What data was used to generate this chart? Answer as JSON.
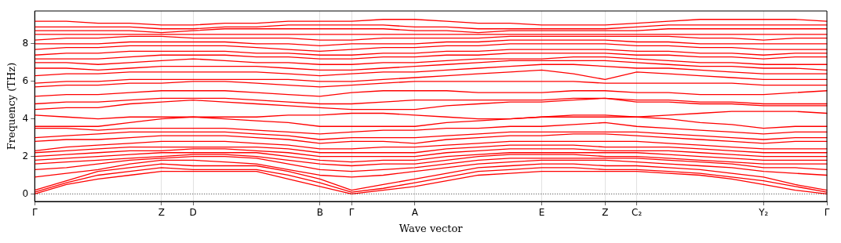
{
  "chart_data": {
    "type": "line",
    "xlabel": "Wave vector",
    "ylabel": "Frequency (THz)",
    "categories": [
      "Γ",
      null,
      null,
      null,
      "Z",
      "D",
      null,
      null,
      null,
      "B",
      "Γ",
      null,
      "A",
      null,
      null,
      null,
      "E",
      null,
      "Z",
      "C₂",
      null,
      null,
      null,
      "Y₂",
      null,
      "Γ"
    ],
    "ylim": [
      -0.4,
      9.75
    ],
    "yticks": [
      0,
      2,
      4,
      6,
      8
    ],
    "grid": "x",
    "legend": false,
    "marker": "none",
    "line_style": "solid",
    "ref_lines": [
      {
        "axis": "y",
        "value": 0,
        "color": "#000000",
        "line_style": "dotted"
      }
    ],
    "series": [
      {
        "color": "#ff0000",
        "values": [
          0,
          0.5,
          0.8,
          1.0,
          1.2,
          1.2,
          1.2,
          1.2,
          0.8,
          0.4,
          0,
          0.2,
          0.4,
          0.7,
          1.0,
          1.1,
          1.2,
          1.2,
          1.2,
          1.2,
          1.1,
          1.0,
          0.8,
          0.5,
          0.2,
          0
        ]
      },
      {
        "color": "#ff0000",
        "values": [
          0.1,
          0.6,
          1.0,
          1.2,
          1.4,
          1.3,
          1.3,
          1.3,
          1.0,
          0.6,
          0.1,
          0.3,
          0.6,
          0.9,
          1.2,
          1.3,
          1.4,
          1.4,
          1.3,
          1.3,
          1.2,
          1.1,
          0.9,
          0.7,
          0.4,
          0.1
        ]
      },
      {
        "color": "#ff0000",
        "values": [
          0.2,
          0.7,
          1.2,
          1.4,
          1.6,
          1.5,
          1.5,
          1.5,
          1.2,
          0.8,
          0.2,
          0.5,
          0.8,
          1.1,
          1.4,
          1.5,
          1.6,
          1.6,
          1.5,
          1.5,
          1.4,
          1.3,
          1.1,
          0.9,
          0.5,
          0.2
        ]
      },
      {
        "color": "#ff0000",
        "values": [
          0.9,
          1.1,
          1.3,
          1.6,
          1.8,
          1.8,
          1.7,
          1.6,
          1.3,
          1.0,
          0.9,
          1.0,
          1.2,
          1.4,
          1.6,
          1.7,
          1.8,
          1.8,
          1.8,
          1.7,
          1.6,
          1.5,
          1.4,
          1.2,
          1.1,
          1.0
        ]
      },
      {
        "color": "#ff0000",
        "values": [
          1.3,
          1.4,
          1.6,
          1.8,
          1.9,
          2.0,
          2.0,
          1.9,
          1.6,
          1.3,
          1.2,
          1.3,
          1.4,
          1.6,
          1.8,
          1.9,
          1.9,
          1.9,
          1.9,
          1.9,
          1.8,
          1.7,
          1.6,
          1.4,
          1.4,
          1.3
        ]
      },
      {
        "color": "#ff0000",
        "values": [
          1.6,
          1.7,
          1.8,
          1.9,
          2.0,
          2.1,
          2.1,
          2.0,
          1.8,
          1.6,
          1.5,
          1.6,
          1.6,
          1.8,
          2.0,
          2.1,
          2.1,
          2.1,
          2.0,
          2.0,
          1.9,
          1.8,
          1.7,
          1.6,
          1.6,
          1.6
        ]
      },
      {
        "color": "#ff0000",
        "values": [
          1.8,
          1.9,
          2.0,
          2.1,
          2.2,
          2.2,
          2.2,
          2.2,
          2.0,
          1.8,
          1.7,
          1.8,
          1.8,
          2.0,
          2.1,
          2.2,
          2.2,
          2.2,
          2.2,
          2.2,
          2.1,
          2.0,
          1.9,
          1.8,
          1.8,
          1.8
        ]
      },
      {
        "color": "#ff0000",
        "values": [
          2.0,
          2.1,
          2.2,
          2.3,
          2.3,
          2.4,
          2.4,
          2.3,
          2.2,
          2.0,
          2.0,
          2.0,
          2.0,
          2.2,
          2.3,
          2.4,
          2.4,
          2.4,
          2.3,
          2.3,
          2.3,
          2.2,
          2.1,
          2.0,
          2.0,
          2.0
        ]
      },
      {
        "color": "#ff0000",
        "values": [
          2.2,
          2.3,
          2.4,
          2.5,
          2.5,
          2.5,
          2.5,
          2.5,
          2.4,
          2.2,
          2.2,
          2.2,
          2.2,
          2.4,
          2.5,
          2.6,
          2.6,
          2.6,
          2.5,
          2.5,
          2.5,
          2.4,
          2.3,
          2.2,
          2.2,
          2.2
        ]
      },
      {
        "color": "#ff0000",
        "values": [
          2.3,
          2.5,
          2.6,
          2.7,
          2.8,
          2.8,
          2.8,
          2.7,
          2.6,
          2.4,
          2.4,
          2.5,
          2.5,
          2.6,
          2.7,
          2.8,
          2.8,
          2.8,
          2.8,
          2.8,
          2.7,
          2.6,
          2.5,
          2.4,
          2.4,
          2.4
        ]
      },
      {
        "color": "#ff0000",
        "values": [
          2.8,
          2.9,
          2.9,
          3.0,
          3.1,
          3.1,
          3.1,
          3.0,
          2.9,
          2.7,
          2.8,
          2.8,
          2.7,
          2.9,
          3.0,
          3.1,
          3.1,
          3.2,
          3.2,
          3.1,
          3.0,
          2.9,
          2.8,
          2.7,
          2.8,
          2.8
        ]
      },
      {
        "color": "#ff0000",
        "values": [
          3.0,
          3.1,
          3.2,
          3.3,
          3.3,
          3.3,
          3.3,
          3.2,
          3.1,
          2.9,
          3.0,
          3.0,
          3.0,
          3.1,
          3.2,
          3.3,
          3.3,
          3.3,
          3.3,
          3.3,
          3.2,
          3.1,
          3.0,
          2.9,
          3.0,
          3.0
        ]
      },
      {
        "color": "#ff0000",
        "values": [
          3.5,
          3.5,
          3.4,
          3.5,
          3.5,
          3.5,
          3.5,
          3.4,
          3.3,
          3.2,
          3.3,
          3.4,
          3.4,
          3.5,
          3.5,
          3.6,
          3.6,
          3.7,
          3.8,
          3.6,
          3.5,
          3.4,
          3.3,
          3.2,
          3.3,
          3.3
        ]
      },
      {
        "color": "#ff0000",
        "values": [
          3.6,
          3.6,
          3.6,
          3.8,
          4.0,
          4.1,
          4.0,
          3.9,
          3.8,
          3.6,
          3.6,
          3.6,
          3.6,
          3.8,
          3.9,
          4.0,
          4.1,
          4.1,
          4.1,
          4.1,
          4.0,
          3.8,
          3.7,
          3.5,
          3.6,
          3.6
        ]
      },
      {
        "color": "#ff0000",
        "values": [
          4.2,
          4.1,
          4.0,
          4.1,
          4.1,
          4.1,
          4.1,
          4.1,
          4.2,
          4.2,
          4.3,
          4.3,
          4.2,
          4.1,
          4.0,
          4.0,
          4.1,
          4.2,
          4.2,
          4.1,
          4.2,
          4.3,
          4.4,
          4.4,
          4.4,
          4.3
        ]
      },
      {
        "color": "#ff0000",
        "values": [
          4.5,
          4.6,
          4.6,
          4.8,
          4.9,
          5.0,
          4.9,
          4.8,
          4.7,
          4.6,
          4.5,
          4.5,
          4.5,
          4.7,
          4.8,
          4.9,
          4.9,
          5.0,
          5.1,
          4.9,
          4.9,
          4.8,
          4.8,
          4.7,
          4.7,
          4.7
        ]
      },
      {
        "color": "#ff0000",
        "values": [
          4.8,
          4.9,
          4.9,
          5.0,
          5.1,
          5.1,
          5.1,
          5.0,
          4.9,
          4.8,
          4.8,
          4.9,
          5.0,
          5.0,
          5.0,
          5.0,
          5.0,
          5.1,
          5.1,
          5.0,
          5.0,
          4.9,
          4.9,
          4.8,
          4.8,
          4.8
        ]
      },
      {
        "color": "#ff0000",
        "values": [
          5.2,
          5.3,
          5.3,
          5.4,
          5.5,
          5.5,
          5.5,
          5.4,
          5.3,
          5.2,
          5.4,
          5.5,
          5.5,
          5.5,
          5.4,
          5.4,
          5.4,
          5.5,
          5.5,
          5.4,
          5.4,
          5.3,
          5.3,
          5.3,
          5.4,
          5.5
        ]
      },
      {
        "color": "#ff0000",
        "values": [
          5.7,
          5.8,
          5.8,
          5.9,
          5.9,
          6.0,
          6.0,
          5.9,
          5.8,
          5.7,
          5.8,
          5.9,
          6.0,
          6.0,
          6.0,
          6.0,
          6.0,
          6.0,
          5.9,
          5.9,
          5.9,
          5.9,
          5.9,
          5.8,
          5.8,
          5.8
        ]
      },
      {
        "color": "#ff0000",
        "values": [
          5.9,
          6.0,
          6.0,
          6.1,
          6.1,
          6.1,
          6.1,
          6.1,
          6.1,
          6.0,
          6.0,
          6.1,
          6.2,
          6.3,
          6.4,
          6.5,
          6.6,
          6.4,
          6.1,
          6.5,
          6.4,
          6.3,
          6.2,
          6.1,
          6.1,
          6.1
        ]
      },
      {
        "color": "#ff0000",
        "values": [
          6.3,
          6.4,
          6.4,
          6.5,
          6.5,
          6.5,
          6.5,
          6.5,
          6.4,
          6.3,
          6.4,
          6.5,
          6.5,
          6.6,
          6.7,
          6.8,
          6.9,
          6.9,
          6.8,
          6.7,
          6.7,
          6.6,
          6.5,
          6.4,
          6.4,
          6.4
        ]
      },
      {
        "color": "#ff0000",
        "values": [
          6.7,
          6.7,
          6.6,
          6.7,
          6.8,
          6.8,
          6.8,
          6.8,
          6.7,
          6.6,
          6.6,
          6.7,
          6.8,
          6.9,
          7.0,
          7.1,
          7.1,
          7.1,
          7.1,
          7.0,
          6.9,
          6.8,
          6.8,
          6.7,
          6.7,
          6.6
        ]
      },
      {
        "color": "#ff0000",
        "values": [
          7.0,
          7.0,
          6.9,
          7.0,
          7.1,
          7.2,
          7.1,
          7.0,
          7.0,
          6.9,
          6.9,
          7.0,
          7.0,
          7.1,
          7.2,
          7.2,
          7.2,
          7.3,
          7.3,
          7.2,
          7.1,
          7.0,
          7.0,
          6.9,
          6.9,
          6.9
        ]
      },
      {
        "color": "#ff0000",
        "values": [
          7.2,
          7.2,
          7.2,
          7.3,
          7.4,
          7.4,
          7.4,
          7.3,
          7.3,
          7.2,
          7.2,
          7.3,
          7.3,
          7.4,
          7.4,
          7.5,
          7.5,
          7.5,
          7.5,
          7.4,
          7.4,
          7.3,
          7.3,
          7.2,
          7.3,
          7.3
        ]
      },
      {
        "color": "#ff0000",
        "values": [
          7.4,
          7.5,
          7.5,
          7.6,
          7.6,
          7.6,
          7.6,
          7.5,
          7.5,
          7.4,
          7.4,
          7.5,
          7.5,
          7.6,
          7.6,
          7.7,
          7.7,
          7.7,
          7.7,
          7.6,
          7.6,
          7.5,
          7.5,
          7.4,
          7.5,
          7.5
        ]
      },
      {
        "color": "#ff0000",
        "values": [
          7.7,
          7.8,
          7.8,
          7.9,
          7.9,
          7.9,
          7.9,
          7.8,
          7.7,
          7.6,
          7.7,
          7.8,
          7.8,
          7.9,
          7.9,
          8.0,
          8.0,
          8.0,
          8.0,
          7.9,
          7.9,
          7.8,
          7.8,
          7.7,
          7.7,
          7.7
        ]
      },
      {
        "color": "#ff0000",
        "values": [
          8.0,
          8.0,
          8.0,
          8.1,
          8.1,
          8.1,
          8.1,
          8.0,
          8.0,
          7.9,
          8.0,
          8.0,
          8.0,
          8.1,
          8.1,
          8.2,
          8.2,
          8.2,
          8.2,
          8.1,
          8.1,
          8.0,
          8.0,
          8.0,
          8.0,
          8.0
        ]
      },
      {
        "color": "#ff0000",
        "values": [
          8.2,
          8.3,
          8.3,
          8.4,
          8.4,
          8.3,
          8.3,
          8.3,
          8.3,
          8.2,
          8.2,
          8.3,
          8.3,
          8.3,
          8.3,
          8.4,
          8.4,
          8.4,
          8.4,
          8.4,
          8.4,
          8.3,
          8.3,
          8.2,
          8.3,
          8.3
        ]
      },
      {
        "color": "#ff0000",
        "values": [
          8.5,
          8.5,
          8.5,
          8.5,
          8.5,
          8.5,
          8.5,
          8.5,
          8.5,
          8.5,
          8.5,
          8.5,
          8.5,
          8.5,
          8.5,
          8.5,
          8.5,
          8.5,
          8.5,
          8.5,
          8.5,
          8.5,
          8.5,
          8.5,
          8.5,
          8.5
        ]
      },
      {
        "color": "#ff0000",
        "values": [
          8.7,
          8.7,
          8.7,
          8.7,
          8.6,
          8.7,
          8.8,
          8.8,
          8.8,
          8.8,
          8.8,
          8.8,
          8.7,
          8.7,
          8.6,
          8.7,
          8.7,
          8.7,
          8.7,
          8.7,
          8.8,
          8.8,
          8.8,
          8.8,
          8.8,
          8.8
        ]
      },
      {
        "color": "#ff0000",
        "values": [
          8.9,
          8.9,
          8.9,
          8.9,
          8.8,
          8.8,
          8.9,
          8.9,
          9.0,
          9.0,
          9.0,
          9.0,
          8.9,
          8.9,
          8.8,
          8.8,
          8.8,
          8.8,
          8.8,
          8.9,
          9.0,
          9.0,
          9.0,
          9.0,
          9.0,
          9.0
        ]
      },
      {
        "color": "#ff0000",
        "values": [
          9.2,
          9.2,
          9.1,
          9.1,
          9.0,
          9.0,
          9.1,
          9.1,
          9.2,
          9.2,
          9.2,
          9.3,
          9.3,
          9.2,
          9.1,
          9.1,
          9.0,
          9.0,
          9.0,
          9.1,
          9.2,
          9.3,
          9.3,
          9.3,
          9.3,
          9.2
        ]
      }
    ]
  }
}
